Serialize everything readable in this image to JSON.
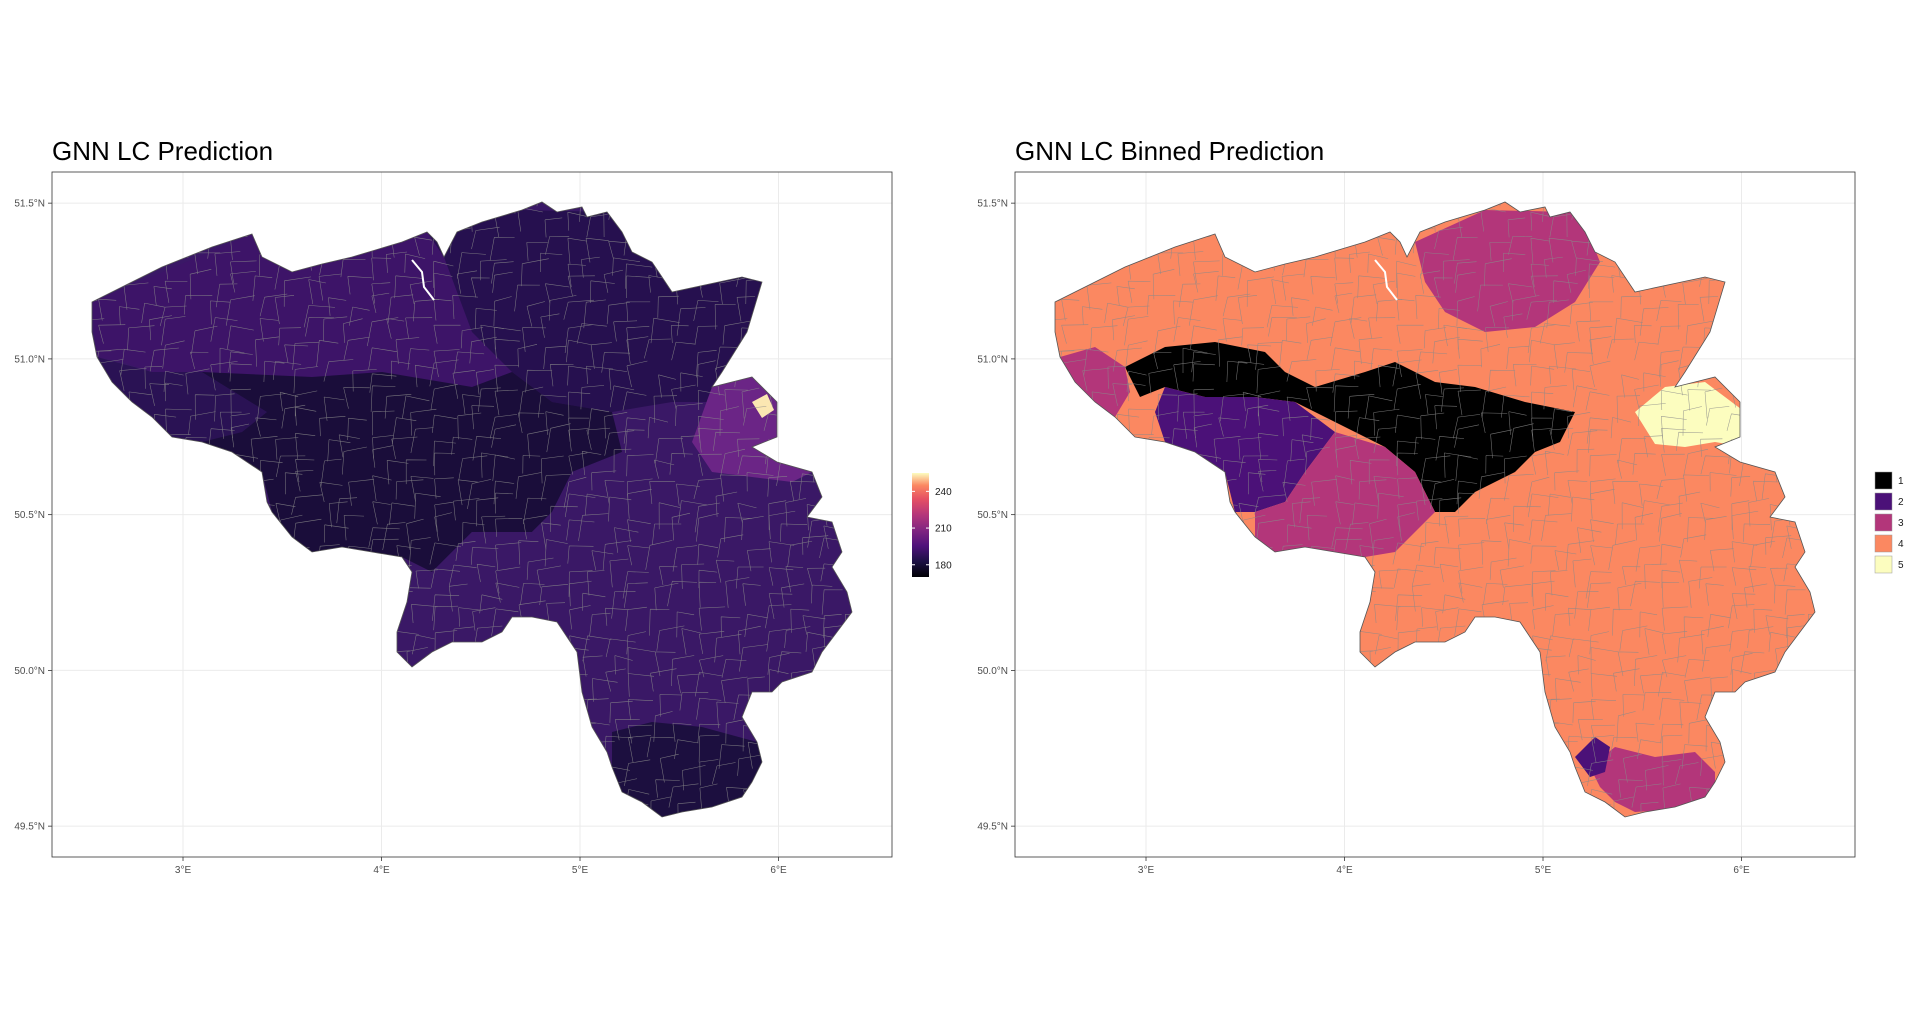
{
  "panels": [
    {
      "id": "left",
      "title": "GNN LC Prediction",
      "y_ticks": [
        "51.5°N",
        "51.0°N",
        "50.5°N",
        "50.0°N",
        "49.5°N"
      ],
      "x_ticks": [
        "3°E",
        "4°E",
        "5°E",
        "6°E"
      ],
      "legend": {
        "type": "continuous",
        "colormap": "magma",
        "range": [
          170,
          255
        ],
        "labels": [
          "240",
          "210",
          "180"
        ],
        "label_values": [
          240,
          210,
          180
        ]
      },
      "regions": {
        "west_flanders_coast": "#3d1468",
        "east_flanders_antwerp_north": "#2f1460",
        "antwerp_limburg": "#26104f",
        "brabant_central": "#1a0d3a",
        "hainaut_west": "#2a1254",
        "namur_liege": "#3a1866",
        "luxembourg_south": "#1c0f3f",
        "liege_east": "#6b2586",
        "eupen_hotspot": "#fbe7b2"
      }
    },
    {
      "id": "right",
      "title": "GNN LC Binned Prediction",
      "y_ticks": [
        "51.5°N",
        "51.0°N",
        "50.5°N",
        "50.0°N",
        "49.5°N"
      ],
      "x_ticks": [
        "3°E",
        "4°E",
        "5°E",
        "6°E"
      ],
      "legend": {
        "type": "discrete",
        "items": [
          {
            "label": "1",
            "color": "#000000"
          },
          {
            "label": "2",
            "color": "#4b1178"
          },
          {
            "label": "3",
            "color": "#b3367a"
          },
          {
            "label": "4",
            "color": "#fb8861"
          },
          {
            "label": "5",
            "color": "#fcfdbf"
          }
        ]
      },
      "regions": {
        "flanders_and_wallonia_main": "#fb8861",
        "campine_north": "#b3367a",
        "west_hainaut": "#b3367a",
        "hainaut_center": "#4b1178",
        "brabant_black_band": "#000000",
        "south_hainaut": "#b3367a",
        "east_cantons": "#fcfdbf",
        "luxembourg_south": "#b3367a",
        "luxembourg_patches": "#4b1178"
      }
    }
  ]
}
